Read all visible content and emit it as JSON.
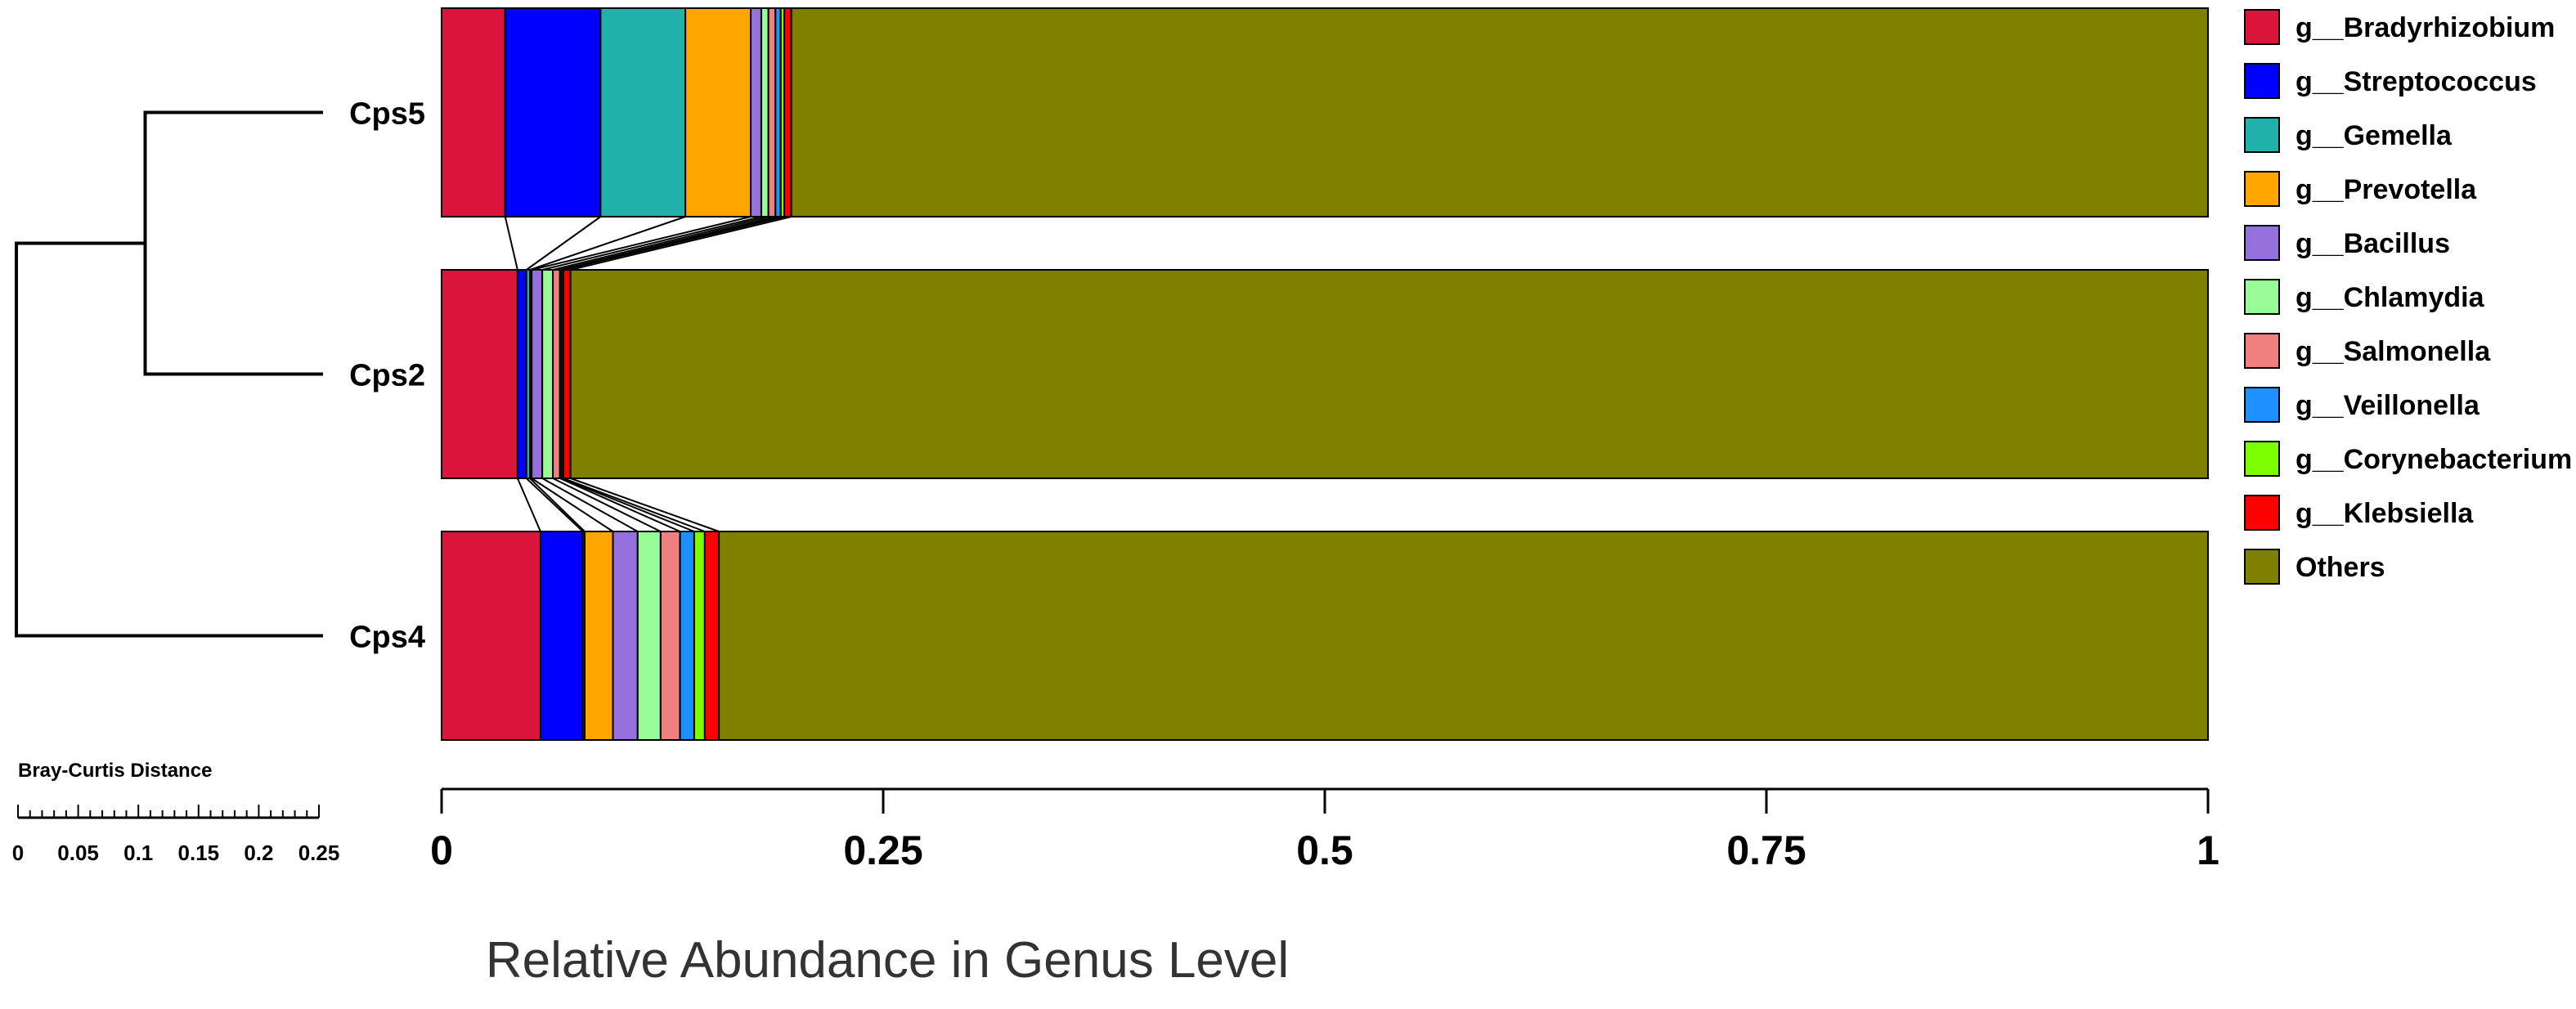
{
  "chart_data": {
    "type": "bar",
    "orientation": "horizontal",
    "stacked": true,
    "xlabel": "Relative Abundance in Genus Level",
    "xlim": [
      0,
      1
    ],
    "xticks": [
      0,
      0.25,
      0.5,
      0.75,
      1
    ],
    "xtick_labels": [
      "0",
      "0.25",
      "0.5",
      "0.75",
      "1"
    ],
    "categories": [
      "Cps5",
      "Cps2",
      "Cps4"
    ],
    "series": [
      {
        "name": "g__Bradyrhizobium",
        "color": "#DC143C",
        "values": [
          0.036,
          0.043,
          0.056
        ]
      },
      {
        "name": "g__Streptococcus",
        "color": "#0000FF",
        "values": [
          0.054,
          0.005,
          0.024
        ]
      },
      {
        "name": "g__Gemella",
        "color": "#20B2AA",
        "values": [
          0.048,
          0.002,
          0.001
        ]
      },
      {
        "name": "g__Prevotella",
        "color": "#FFA500",
        "values": [
          0.037,
          0.001,
          0.016
        ]
      },
      {
        "name": "g__Bacillus",
        "color": "#9370DB",
        "values": [
          0.006,
          0.006,
          0.014
        ]
      },
      {
        "name": "g__Chlamydia",
        "color": "#98FB98",
        "values": [
          0.004,
          0.006,
          0.013
        ]
      },
      {
        "name": "g__Salmonella",
        "color": "#F08080",
        "values": [
          0.004,
          0.004,
          0.011
        ]
      },
      {
        "name": "g__Veillonella",
        "color": "#1E90FF",
        "values": [
          0.003,
          0.001,
          0.008
        ]
      },
      {
        "name": "g__Corynebacterium",
        "color": "#7CFC00",
        "values": [
          0.002,
          0.001,
          0.006
        ]
      },
      {
        "name": "g__Klebsiella",
        "color": "#FF0000",
        "values": [
          0.004,
          0.004,
          0.008
        ]
      },
      {
        "name": "Others",
        "color": "#808000",
        "values": [
          0.802,
          0.927,
          0.843
        ]
      }
    ],
    "dendrogram": {
      "metric_label": "Bray-Curtis Distance",
      "scale_ticks": [
        "0",
        "0.05",
        "0.1",
        "0.15",
        "0.2",
        "0.25"
      ],
      "merges": [
        {
          "left": "Cps5",
          "right": "Cps2",
          "height": 0.145
        },
        {
          "left": "Cps5|Cps2",
          "right": "Cps4",
          "height": 0.25
        }
      ]
    },
    "legend_position": "right"
  }
}
